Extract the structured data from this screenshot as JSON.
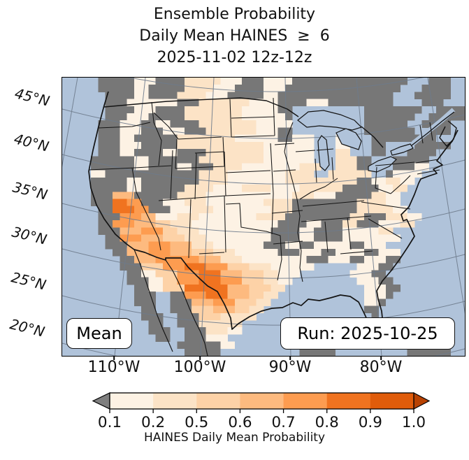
{
  "title": {
    "line1": "Ensemble Probability",
    "line2": "Daily Mean HAINES  ≥  6",
    "line3": "2025-11-02 12z-12z"
  },
  "map": {
    "mean_label": "Mean",
    "run_label": "Run: 2025-10-25",
    "lat_labels": [
      "45°N",
      "40°N",
      "35°N",
      "30°N",
      "25°N",
      "20°N"
    ],
    "lon_labels": [
      "110°W",
      "100°W",
      "90°W",
      "80°W"
    ],
    "ocean_color": "#b0c3da",
    "masked_gray": "#777777",
    "border_color": "#141414",
    "graticule_color": "#6e7b8c"
  },
  "colorbar": {
    "tick_labels": [
      "0.1",
      "0.2",
      "0.5",
      "0.6",
      "0.7",
      "0.8",
      "0.9",
      "1.0"
    ],
    "caption": "HAINES Daily Mean Probability",
    "segment_colors": [
      "#fdf2e4",
      "#fce3c6",
      "#fdd2a7",
      "#fdba7f",
      "#fd9c50",
      "#f07320",
      "#e05c0b"
    ],
    "under_color": "#7f7f7f",
    "over_color": "#b84202",
    "outline_color": "#000000"
  },
  "chart_data": {
    "type": "heatmap",
    "title": "Ensemble Probability Daily Mean HAINES ≥ 6",
    "valid_time": "2025-11-02 12z-12z",
    "run_time": "2025-10-25",
    "statistic": "Mean",
    "variable": "HAINES Daily Mean Probability",
    "colorbar_levels": [
      0.1,
      0.2,
      0.5,
      0.6,
      0.7,
      0.8,
      0.9,
      1.0
    ],
    "x_ticks": [
      "110°W",
      "100°W",
      "90°W",
      "80°W"
    ],
    "y_ticks": [
      "45°N",
      "40°N",
      "35°N",
      "30°N",
      "25°N",
      "20°N"
    ],
    "legend": {
      "~": "ocean / outside grid",
      "g": "below 0.1 (gray mask)",
      "a": "0.1–0.2",
      "b": "0.2–0.5",
      "c": "0.5–0.6",
      "d": "0.6–0.7",
      "e": "0.7–0.8",
      "f": "0.8–0.9",
      "h": "0.9–1.0"
    },
    "class_colors": {
      "g": "#777777",
      "a": "#fdf2e4",
      "b": "#fce3c6",
      "c": "#fdd2a7",
      "d": "#fdba7f",
      "e": "#fd9c50",
      "f": "#f07320",
      "h": "#e05c0b"
    },
    "grid": {
      "cols": 56,
      "rows": 39,
      "cells": [
        "~~~~~gggggaaaggggbbbbbaaagggaaaagggggggggggggggg~~~ggg~~",
        "~~~~~gggggaagggggbbbbaaaggggaaagggggggggggggggg~~~gggg~~",
        "~~~~~~ggggaaggggbbbbaaagggggaagggggggggggggggg~~~ggggg~~",
        "~~~~~~gggaaaaaaagggbbbbbbbaaaaggggaaaggggggggg~~~~ggg~~~",
        "~~~~~~ggggaaaggggbbbbbbbbaaaaagg~~~~~~~~~~gggggggg~~gggg",
        "~~~~~~gggaaagggggbbbbbbbbaaaaaag~~~~~~~~~~ggggggg~~ggggg",
        "~~~~~gggaaaggaaggggbbbbbbbbaaaaa~~~~~~~~~~gggggg~~gggg~~",
        "~~~~~gggaaagggaaagggbbbbbbbaaagg~~~~~~~~~~ggggggg~~ggg~~",
        "~~~~~gggaaggggggbbbbbbbbaaaaaaggaaa~~~aa~~~ggggggggg~~~~",
        "~~~~~gggaaagggggbbbbbbbbbbbbaaaaaaa~~~aa~~~gg~~~~ggggg~~",
        "~~~~~gggaaggggaaggggbbbbbbbbaaaaaaa~~~bb~~~gg~~~gggg~~~~",
        "~~~~ggggggaagggggggbbbbbbbbbaaaaaaa~~~bbbgg~~~ggggg~~~~~",
        "~~~~ggggggaaggggaagggbbbbaaaaaaaabbb~~bbbgg~~~gggaa~~~~~",
        "~~~~aagggggggggggggbbbbaaaaaaaabbbb~~bbbbbb~~gaaaa~~~~~~",
        "~~~~gggggaaggggggggbbbbaaaaaaaabbbbbbbbbbggaabbaa~~~~~~~",
        "~~~~gggggaaggggggbbbbaaaabbbbaaaabbbbbbgggggaabb~~~~~~~~",
        "~~~~gggdddggggggbbbbaaaaaaaaaaaabbbaaagggggbbaa~~~~~~~~~",
        "~~~~gggffeegggaaabbbaaaaaaaabbbbgggggggggbbbbaa~~~~~~~~~",
        "~~~~~ggfffeegggaaabbbaaaaaaaabbbgggggggggbbbbbaa~~~~~~~~",
        "~~~~~gggeeeddaaabbbaaaaaaaabbbbgggggggggbbgggbbbaa~~~~~~",
        "~~~~~ggeeedddccbbbaaaaaaaaaaaaggggaagggbbgggaaabb~~~~~~~",
        "~~~~~gggdddeeeccbbbaaaaaaaaaaggggaaggggaaaaabb~~~~~~~~~~",
        "~~~~~~ggeeedddcccbbbaaaaaaaaaggggaaggggaaaaaaaa~~~~~~~~~",
        "~~~~~~gggdddeeedddbbbaaaaaaagggaaggaaaaaggaaa~~~~~~~~~~~",
        "~~~~~~~ggdddeeedddcccbbbaaaaaagggaaaggaaaaggaaa~~~~~~~~~",
        "~~~~~~~~ggdddeeeeeedddbbbaaaaaaaaagggaaaggaaagg~~~~~~~~~",
        "~~~~~~~~gggccceeefffeeecccbbbaaaaaa~~~~~~aaagg~~~~~~~~~~",
        "~~~~~~~~~ggaaccceeefffdddcccbbaaa~~~~~~~aaagg~~~~~~~~~~~",
        "~~~~~~~~~gggaacceeefffeeecccbbaa~~~~~~~~~aaagg~~~~~~~~~~",
        "~~~~~~~~~~ggaacccffffffdddcccbb~~~~~~~~~~~aaagg~~~~~~~~~",
        "~~~~~~~~~~ggg~~ggeeefffdddccbb~~~~~~~~~~~~aaag~~~~~~~~~~",
        "~~~~~~~~~~ggg~~gggdddeeecccbb~~~~~~~~~~~~~aag~~~~~~~~~~~",
        "~~~~~~~~~~~gg~~gggcccdddccbb~~~~~~~~~~~~~~gg~~~~~~~~~~~~",
        "~~~~~~~~~~~ggg~~gggcccbbbbb~~~~~~~~~~~~~~~~g~~~~~~~~~~~~",
        "~~~~~~~~~~~~gg~~gggbbbbbb~~~~~~~~~~~~~~~~~~~~~~~~~~~~~~",
        "~~~~~~~~~~~~ggg~~gggbbbaa~~~~~~~~~~~~~~~~~~~~~~~~~~~~~~~",
        "~~~~~~~~~~~~~gg~~gggaaa~~~~~~~~~~~ggggg~~~~~~~~gggg~~~~~",
        "~~~~~~~~~~~~~~~~ggggggaa~~~~~~~~~ggggggg~~~~~~~gggggg~~~",
        "~~~~~~~~~~~~~~~~~ggggg~~~~~~~~~~~ggggg~~~~~~~~~~gggggg~~"
      ]
    }
  }
}
